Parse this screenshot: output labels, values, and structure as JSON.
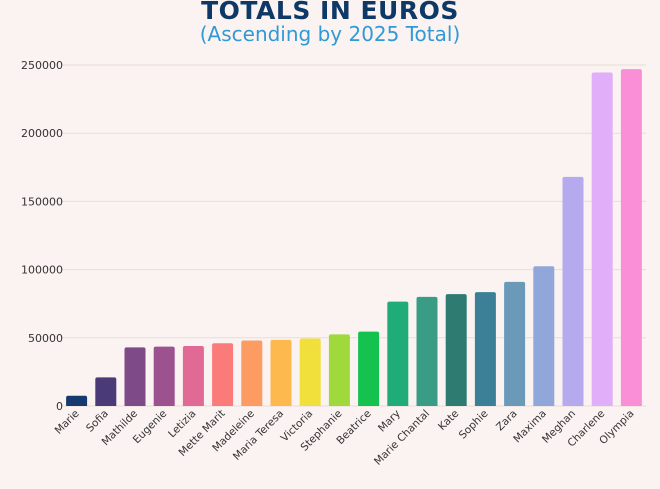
{
  "chart_data": {
    "type": "bar",
    "title": "TOTALS IN EUROS",
    "subtitle": "(Ascending by 2025 Total)",
    "xlabel": "",
    "ylabel": "",
    "ylim": [
      0,
      250000
    ],
    "yticks": [
      0,
      50000,
      100000,
      150000,
      200000,
      250000
    ],
    "grid": true,
    "categories": [
      "Marie",
      "Sofia",
      "Mathilde",
      "Eugenie",
      "Letizia",
      "Mette Marit",
      "Madeleine",
      "Maria Teresa",
      "Victoria",
      "Stephanie",
      "Beatrice",
      "Mary",
      "Marie Chantal",
      "Kate",
      "Sophie",
      "Zara",
      "Maxima",
      "Meghan",
      "Charlene",
      "Olympia"
    ],
    "values": [
      7500,
      21000,
      43000,
      43500,
      44000,
      46000,
      48000,
      48500,
      49500,
      52500,
      54500,
      76500,
      80000,
      82000,
      83500,
      91000,
      102500,
      168000,
      244500,
      247000
    ],
    "colors": [
      "#163a70",
      "#4a3b78",
      "#7e4a87",
      "#9d5290",
      "#e06a95",
      "#fb7a7a",
      "#fd9c62",
      "#fdb84e",
      "#f1df3c",
      "#9fd93c",
      "#15c24f",
      "#1fac78",
      "#3a9c84",
      "#2e7b72",
      "#3b8097",
      "#6b9ab8",
      "#91a7d9",
      "#b6aaee",
      "#e1aef9",
      "#fb8fd7"
    ]
  }
}
